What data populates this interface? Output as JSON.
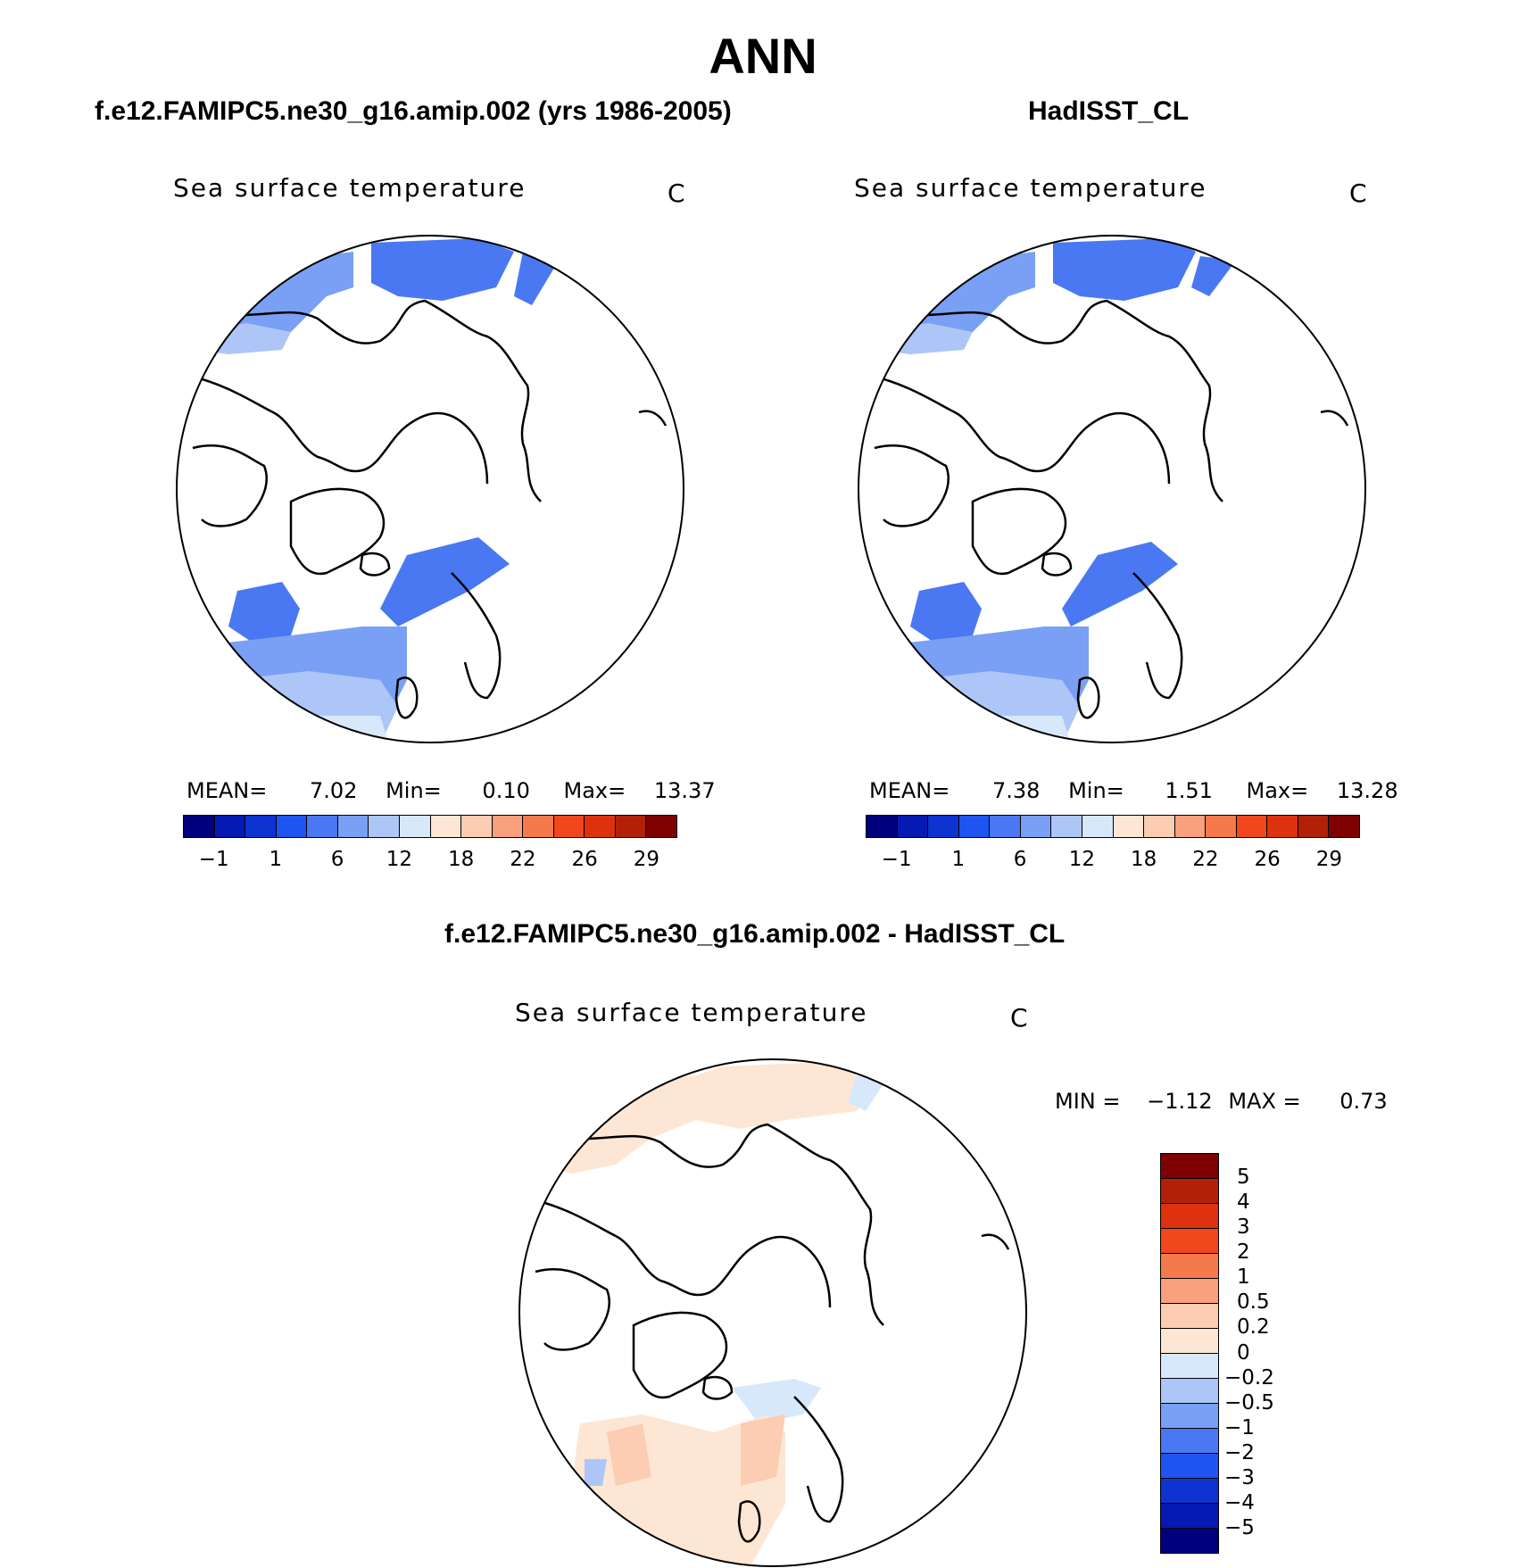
{
  "figure": {
    "title": "ANN",
    "panels": [
      {
        "title": "f.e12.FAMIPC5.ne30_g16.amip.002 (yrs 1986-2005)",
        "plot_title": "Sea surface temperature",
        "unit": "C",
        "stats": {
          "mean_label": "MEAN=",
          "mean": "7.02",
          "min_label": "Min=",
          "min": "0.10",
          "max_label": "Max=",
          "max": "13.37"
        }
      },
      {
        "title": "HadISST_CL",
        "plot_title": "Sea surface temperature",
        "unit": "C",
        "stats": {
          "mean_label": "MEAN=",
          "mean": "7.38",
          "min_label": "Min=",
          "min": "1.51",
          "max_label": "Max=",
          "max": "13.28"
        }
      },
      {
        "title": "f.e12.FAMIPC5.ne30_g16.amip.002 - HadISST_CL",
        "plot_title": "Sea surface temperature",
        "unit": "C",
        "stats": {
          "min_label": "MIN =",
          "min": "−1.12",
          "max_label": "MAX =",
          "max": "0.73"
        }
      }
    ]
  },
  "colorbar_abs": {
    "colors": [
      "#00007f",
      "#0619b2",
      "#0d33d1",
      "#1e55f0",
      "#4a78f2",
      "#7aa0f5",
      "#adc6f7",
      "#d7e8fb",
      "#fde6d4",
      "#fcccb3",
      "#f9a07c",
      "#f57a4b",
      "#f0471c",
      "#de310e",
      "#b22107",
      "#7e0000"
    ],
    "labels": [
      "−1",
      "1",
      "6",
      "12",
      "18",
      "22",
      "26",
      "29"
    ]
  },
  "colorbar_diff": {
    "colors": [
      "#7e0000",
      "#b22107",
      "#de310e",
      "#f0471c",
      "#f57a4b",
      "#f9a07c",
      "#fcccb3",
      "#fde6d4",
      "#d7e8fb",
      "#adc6f7",
      "#7aa0f5",
      "#4a78f2",
      "#1e55f0",
      "#0d33d1",
      "#0619b2",
      "#00007f"
    ],
    "labels": [
      "5",
      "4",
      "3",
      "2",
      "1",
      "0.5",
      "0.2",
      "0",
      "−0.2",
      "−0.5",
      "−1",
      "−2",
      "−3",
      "−4",
      "−5"
    ]
  }
}
